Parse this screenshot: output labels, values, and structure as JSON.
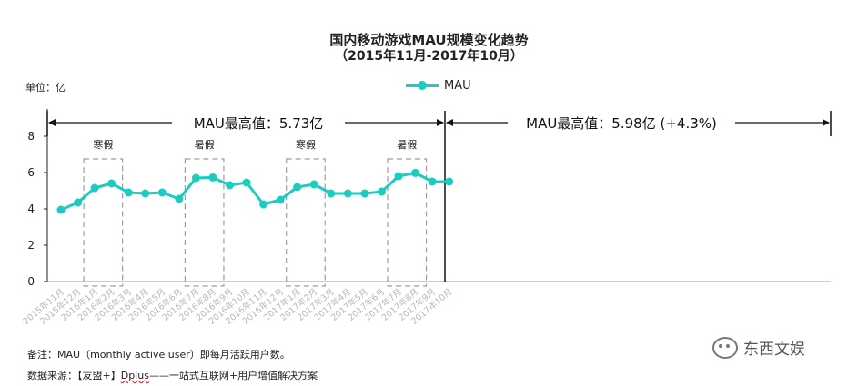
{
  "chart_data": {
    "type": "line",
    "title": "国内移动游戏MAU规模变化趋势",
    "subtitle": "（2015年11月-2017年10月）",
    "unit_label": "单位：亿",
    "categories": [
      "2015年11月",
      "2015年12月",
      "2016年1月",
      "2016年2月",
      "2016年3月",
      "2016年4月",
      "2016年5月",
      "2016年6月",
      "2016年7月",
      "2016年8月",
      "2016年9月",
      "2016年10月",
      "2016年11月",
      "2016年12月",
      "2017年1月",
      "2017年2月",
      "2017年3月",
      "2017年4月",
      "2017年5月",
      "2017年6月",
      "2017年7月",
      "2017年8月",
      "2017年9月",
      "2017年10月"
    ],
    "series": [
      {
        "name": "MAU",
        "color": "#1ecbc0",
        "values": [
          3.95,
          4.35,
          5.15,
          5.4,
          4.9,
          4.85,
          4.9,
          4.55,
          5.7,
          5.73,
          5.3,
          5.45,
          4.25,
          4.5,
          5.2,
          5.35,
          4.85,
          4.85,
          4.85,
          4.95,
          5.8,
          5.98,
          5.5,
          5.5
        ]
      }
    ],
    "ylim": [
      0,
      8
    ],
    "yticks": [
      "0",
      "2",
      "4",
      "6",
      "8"
    ],
    "grid": false,
    "legend_position": "top-center",
    "annotations": [
      {
        "label": "MAU最高值：5.73亿",
        "from_index": 0,
        "to_index": 11
      },
      {
        "label": "MAU最高值：5.98亿 (+4.3%)",
        "from_index": 12,
        "to_index": 23
      }
    ],
    "highlight_boxes": [
      {
        "label": "寒假",
        "from_index": 2,
        "to_index": 3
      },
      {
        "label": "暑假",
        "from_index": 8,
        "to_index": 9
      },
      {
        "label": "寒假",
        "from_index": 14,
        "to_index": 15
      },
      {
        "label": "暑假",
        "from_index": 20,
        "to_index": 21
      }
    ]
  },
  "footer": {
    "note": "备注：MAU（monthly active user）即每月活跃用户数。",
    "source_prefix": "数据来源：【友盟+】",
    "source_brand": "Dplus",
    "source_suffix": "——一站式互联网+用户增值解决方案"
  },
  "watermark": {
    "text": "东西文娱",
    "icon": "wechat-icon"
  }
}
